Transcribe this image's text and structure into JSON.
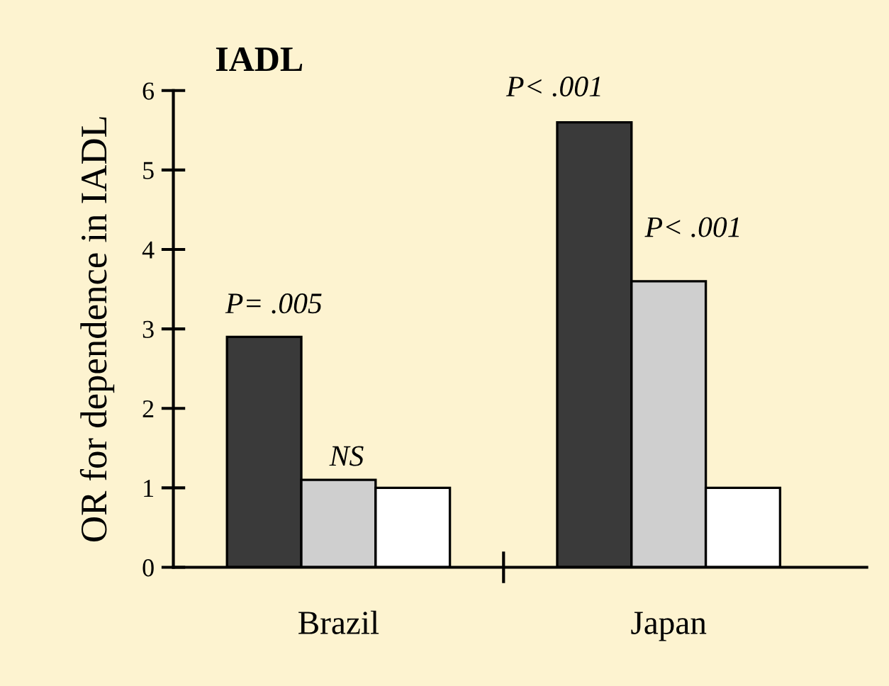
{
  "chart_data": {
    "type": "bar",
    "title": "IADL",
    "ylabel": "OR for dependence in IADL",
    "categories": [
      "Brazil",
      "Japan"
    ],
    "series": [
      {
        "color": "#3a3a3a",
        "values": [
          2.9,
          5.6
        ]
      },
      {
        "color": "#cfcfcf",
        "values": [
          1.1,
          3.6
        ]
      },
      {
        "color": "#ffffff",
        "values": [
          1.0,
          1.0
        ]
      }
    ],
    "annotations": [
      "P= .005",
      "NS",
      "P< .001",
      "P< .001"
    ],
    "ylim": [
      0,
      6
    ],
    "yticks": [
      0,
      1,
      2,
      3,
      4,
      5,
      6
    ],
    "grid": false,
    "legend": false
  }
}
